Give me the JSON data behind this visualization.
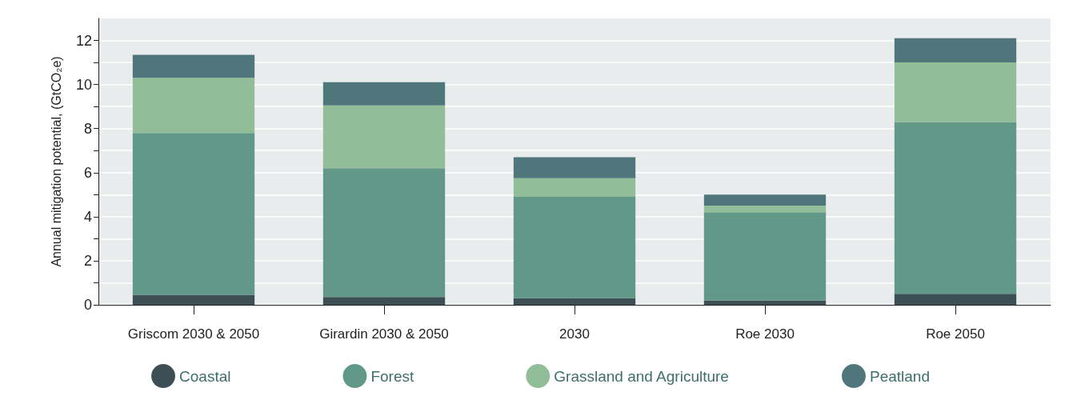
{
  "chart_data": {
    "type": "bar",
    "stacked": true,
    "ylabel": "Annual mitigation potential, (GtCO₂e)",
    "categories": [
      "Griscom 2030 & 2050",
      "Girardin 2030 & 2050",
      "2030",
      "Roe 2030",
      "Roe 2050"
    ],
    "series": [
      {
        "name": "Coastal",
        "color": "#3d4f55",
        "values": [
          0.45,
          0.35,
          0.3,
          0.2,
          0.5
        ]
      },
      {
        "name": "Forest",
        "color": "#629888",
        "values": [
          7.35,
          5.85,
          4.6,
          4.0,
          7.8
        ]
      },
      {
        "name": "Grassland and Agriculture",
        "color": "#91be98",
        "values": [
          2.5,
          2.85,
          0.85,
          0.3,
          2.7
        ]
      },
      {
        "name": "Peatland",
        "color": "#4e767b",
        "values": [
          1.05,
          1.05,
          0.95,
          0.5,
          1.1
        ]
      }
    ],
    "ylim": [
      0,
      13
    ],
    "yticks": [
      0,
      {
        "value": 1,
        "label": null
      },
      2,
      {
        "value": 3,
        "label": null
      },
      4,
      {
        "value": 5,
        "label": null
      },
      6,
      {
        "value": 7,
        "label": null
      },
      8,
      {
        "value": 9,
        "label": null
      },
      10,
      {
        "value": 11,
        "label": null
      },
      12
    ],
    "grid": "y",
    "legend": "bottom"
  }
}
